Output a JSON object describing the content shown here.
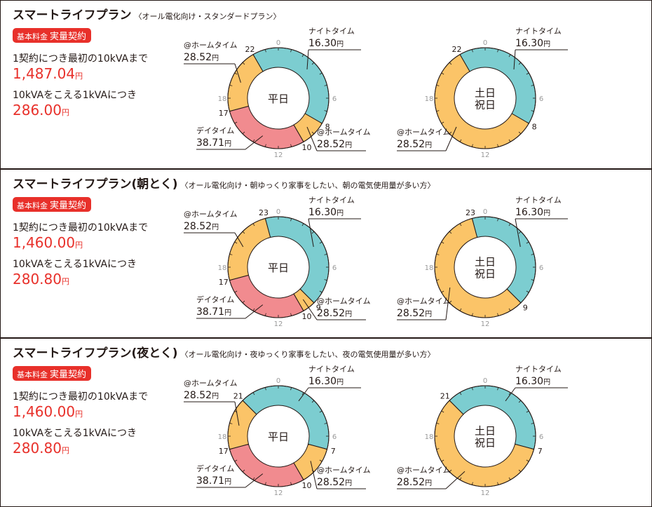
{
  "unit": "円",
  "hour_ticks": [
    0,
    6,
    12,
    18
  ],
  "plans": [
    {
      "title": "スマートライフプラン",
      "subtitle": "〈オール電化向け・スタンダードプラン〉",
      "badge": [
        "基本料金",
        "実量契約"
      ],
      "rate1_label": "1契約につき最初の10kVAまで",
      "rate1_price": "1,487.04",
      "rate2_label": "10kVAをこえる1kVAにつき",
      "rate2_price": "286.00",
      "charts": [
        {
          "center": [
            "平日"
          ],
          "segments": [
            {
              "name": "ナイトタイム",
              "price": "16.30",
              "color": "#7ccdd0",
              "start": 22,
              "end": 8
            },
            {
              "name": "@ホームタイム",
              "price": "28.52",
              "color": "#fbc468",
              "start": 8,
              "end": 10
            },
            {
              "name": "デイタイム",
              "price": "38.71",
              "color": "#f18b8f",
              "start": 10,
              "end": 17
            },
            {
              "name": "@ホームタイム",
              "price": "28.52",
              "color": "#fbc468",
              "start": 17,
              "end": 22
            }
          ]
        },
        {
          "center": [
            "土日",
            "祝日"
          ],
          "segments": [
            {
              "name": "ナイトタイム",
              "price": "16.30",
              "color": "#7ccdd0",
              "start": 22,
              "end": 8
            },
            {
              "name": "@ホームタイム",
              "price": "28.52",
              "color": "#fbc468",
              "start": 8,
              "end": 22
            }
          ]
        }
      ]
    },
    {
      "title": "スマートライフプラン(朝とく)",
      "subtitle": "〈オール電化向け・朝ゆっくり家事をしたい、朝の電気使用量が多い方〉",
      "badge": [
        "基本料金",
        "実量契約"
      ],
      "rate1_label": "1契約につき最初の10kVAまで",
      "rate1_price": "1,460.00",
      "rate2_label": "10kVAをこえる1kVAにつき",
      "rate2_price": "280.80",
      "charts": [
        {
          "center": [
            "平日"
          ],
          "segments": [
            {
              "name": "ナイトタイム",
              "price": "16.30",
              "color": "#7ccdd0",
              "start": 23,
              "end": 9
            },
            {
              "name": "@ホームタイム",
              "price": "28.52",
              "color": "#fbc468",
              "start": 9,
              "end": 10
            },
            {
              "name": "デイタイム",
              "price": "38.71",
              "color": "#f18b8f",
              "start": 10,
              "end": 17
            },
            {
              "name": "@ホームタイム",
              "price": "28.52",
              "color": "#fbc468",
              "start": 17,
              "end": 23
            }
          ]
        },
        {
          "center": [
            "土日",
            "祝日"
          ],
          "segments": [
            {
              "name": "ナイトタイム",
              "price": "16.30",
              "color": "#7ccdd0",
              "start": 23,
              "end": 9
            },
            {
              "name": "@ホームタイム",
              "price": "28.52",
              "color": "#fbc468",
              "start": 9,
              "end": 23
            }
          ]
        }
      ]
    },
    {
      "title": "スマートライフプラン(夜とく)",
      "subtitle": "〈オール電化向け・夜ゆっくり家事をしたい、夜の電気使用量が多い方〉",
      "badge": [
        "基本料金",
        "実量契約"
      ],
      "rate1_label": "1契約につき最初の10kVAまで",
      "rate1_price": "1,460.00",
      "rate2_label": "10kVAをこえる1kVAにつき",
      "rate2_price": "280.80",
      "charts": [
        {
          "center": [
            "平日"
          ],
          "segments": [
            {
              "name": "ナイトタイム",
              "price": "16.30",
              "color": "#7ccdd0",
              "start": 21,
              "end": 7
            },
            {
              "name": "@ホームタイム",
              "price": "28.52",
              "color": "#fbc468",
              "start": 7,
              "end": 10
            },
            {
              "name": "デイタイム",
              "price": "38.71",
              "color": "#f18b8f",
              "start": 10,
              "end": 17
            },
            {
              "name": "@ホームタイム",
              "price": "28.52",
              "color": "#fbc468",
              "start": 17,
              "end": 21
            }
          ]
        },
        {
          "center": [
            "土日",
            "祝日"
          ],
          "segments": [
            {
              "name": "ナイトタイム",
              "price": "16.30",
              "color": "#7ccdd0",
              "start": 21,
              "end": 7
            },
            {
              "name": "@ホームタイム",
              "price": "28.52",
              "color": "#fbc468",
              "start": 7,
              "end": 21
            }
          ]
        }
      ]
    }
  ]
}
